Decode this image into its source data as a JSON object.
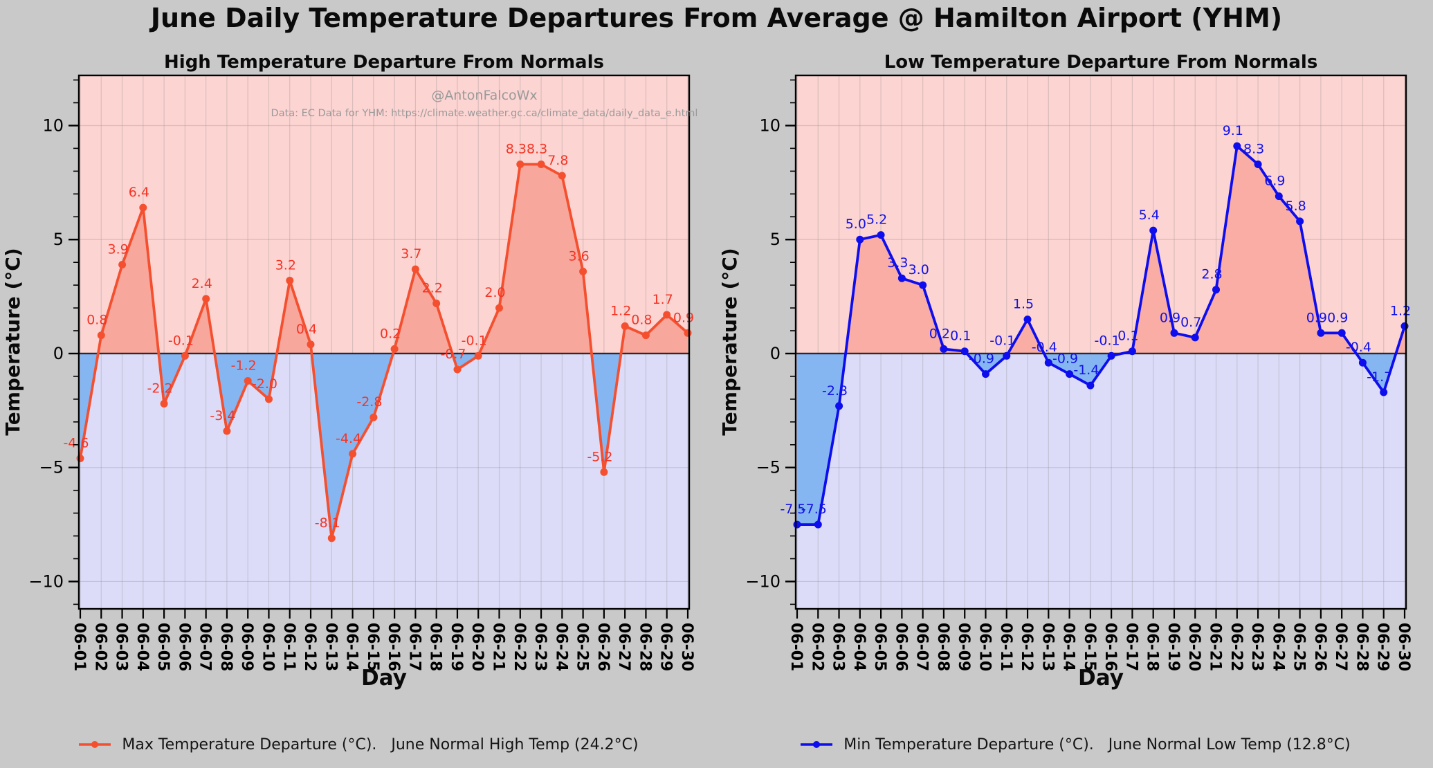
{
  "main": {
    "title": "June Daily Temperature Departures From Average @ Hamilton Airport (YHM)"
  },
  "axes": {
    "xlabel": "Day",
    "ylabel": "Temperature (°C)",
    "yticks": [
      10,
      5,
      0,
      -5,
      -10
    ],
    "ylim": [
      -11.2,
      12.2
    ],
    "grid": true
  },
  "watermark": {
    "line1": "@AntonFalcoWx",
    "line2": "Data: EC Data for YHM: https://climate.weather.gc.ca/climate_data/daily_data_e.html"
  },
  "colors": {
    "figure_bg": "#c9c9c9",
    "above_zero_bg": "#fcd4d2",
    "below_zero_bg": "#dcdcf8",
    "grid": "#808080",
    "spine": "#000000",
    "zero_line": "#000000",
    "tick_label": "#000000",
    "legend_text": "#141414",
    "watermark": "#999999"
  },
  "chart_data": [
    {
      "type": "line",
      "title": "High Temperature Departure From Normals",
      "series_name": "Max Temperature Departure (°C)",
      "legend": "Max Temperature Departure (°C).   June Normal High Temp (24.2°C)",
      "normal_reference": "24.2°C",
      "x": [
        "06-01",
        "06-02",
        "06-03",
        "06-04",
        "06-05",
        "06-06",
        "06-07",
        "06-08",
        "06-09",
        "06-10",
        "06-11",
        "06-12",
        "06-13",
        "06-14",
        "06-15",
        "06-16",
        "06-17",
        "06-18",
        "06-19",
        "06-20",
        "06-21",
        "06-22",
        "06-23",
        "06-24",
        "06-25",
        "06-26",
        "06-27",
        "06-28",
        "06-29",
        "06-30"
      ],
      "values": [
        -4.6,
        0.8,
        3.9,
        6.4,
        -2.2,
        -0.1,
        2.4,
        -3.4,
        -1.2,
        -2.0,
        3.2,
        0.4,
        -8.1,
        -4.4,
        -2.8,
        0.2,
        3.7,
        2.2,
        -0.7,
        -0.1,
        2.0,
        8.3,
        8.3,
        7.8,
        3.6,
        -5.2,
        1.2,
        0.8,
        1.7,
        0.9
      ],
      "line_color": "#f4502f",
      "label_color": "#f53424",
      "pos_fill": "#f8a79d",
      "neg_fill": "#85b6f2",
      "has_watermark": true
    },
    {
      "type": "line",
      "title": "Low Temperature Departure From Normals",
      "series_name": "Min Temperature Departure (°C)",
      "legend": "Min Temperature Departure (°C).   June Normal Low Temp (12.8°C)",
      "normal_reference": "12.8°C",
      "x": [
        "06-01",
        "06-02",
        "06-03",
        "06-04",
        "06-05",
        "06-06",
        "06-07",
        "06-08",
        "06-09",
        "06-10",
        "06-11",
        "06-12",
        "06-13",
        "06-14",
        "06-15",
        "06-16",
        "06-17",
        "06-18",
        "06-19",
        "06-20",
        "06-21",
        "06-22",
        "06-23",
        "06-24",
        "06-25",
        "06-26",
        "06-27",
        "06-28",
        "06-29",
        "06-30"
      ],
      "values": [
        -7.5,
        -7.5,
        -2.3,
        5.0,
        5.2,
        3.3,
        3.0,
        0.2,
        0.1,
        -0.9,
        -0.1,
        1.5,
        -0.4,
        -0.9,
        -1.4,
        -0.1,
        0.1,
        5.4,
        0.9,
        0.7,
        2.8,
        9.1,
        8.3,
        6.9,
        5.8,
        0.9,
        0.9,
        -0.4,
        -1.7,
        1.2
      ],
      "line_color": "#0d0dee",
      "label_color": "#1212e6",
      "pos_fill": "#f9ada4",
      "neg_fill": "#85b6f2",
      "has_watermark": false
    }
  ]
}
